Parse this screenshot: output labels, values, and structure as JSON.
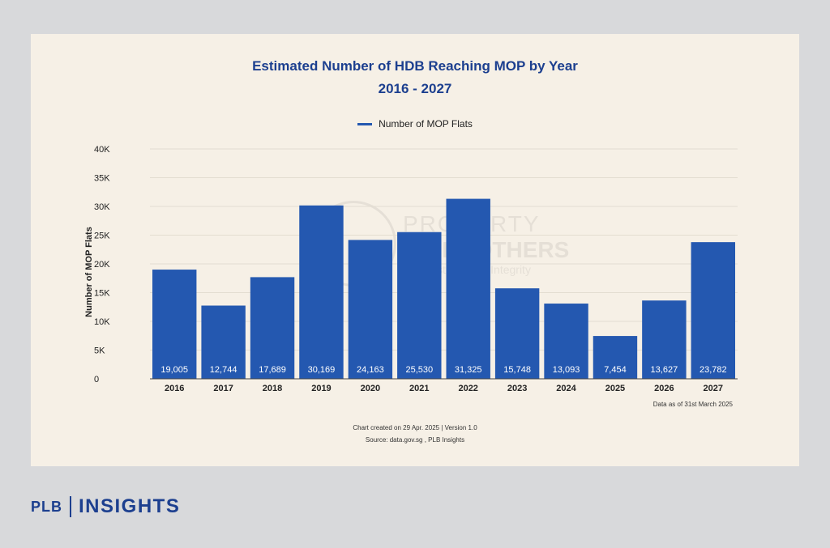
{
  "chart_data": {
    "type": "bar",
    "title": "Estimated Number of HDB Reaching MOP by Year",
    "subtitle": "2016 - 2027",
    "legend": "Number of MOP Flats",
    "legend_position": "top-center",
    "ylabel": "Number of MOP Flats",
    "xlabel": "",
    "ylim": [
      0,
      40000
    ],
    "yticks": [
      0,
      5000,
      10000,
      15000,
      20000,
      25000,
      30000,
      35000,
      40000
    ],
    "ytick_labels": [
      "0",
      "5K",
      "10K",
      "15K",
      "20K",
      "25K",
      "30K",
      "35K",
      "40K"
    ],
    "grid": true,
    "categories": [
      "2016",
      "2017",
      "2018",
      "2019",
      "2020",
      "2021",
      "2022",
      "2023",
      "2024",
      "2025",
      "2026",
      "2027"
    ],
    "values": [
      19005,
      12744,
      17689,
      30169,
      24163,
      25530,
      31325,
      15748,
      13093,
      7454,
      13627,
      23782
    ],
    "value_labels": [
      "19,005",
      "12,744",
      "17,689",
      "30,169",
      "24,163",
      "25,530",
      "31,325",
      "15,748",
      "13,093",
      "7,454",
      "13,627",
      "23,782"
    ],
    "bar_color": "#2458b0"
  },
  "notes": {
    "data_as_of": "Data as of 31st March 2025",
    "created": "Chart created on 29 Apr. 2025 | Version 1.0",
    "source": "Source: data.gov.sg , PLB Insights"
  },
  "watermark": {
    "line1": "PROPERTY",
    "line2": "LIMBROTHERS",
    "line3": "Real Estate With Integrity"
  },
  "brand": {
    "plb": "PLB",
    "insights": "INSIGHTS",
    "color": "#1c3f8f"
  }
}
